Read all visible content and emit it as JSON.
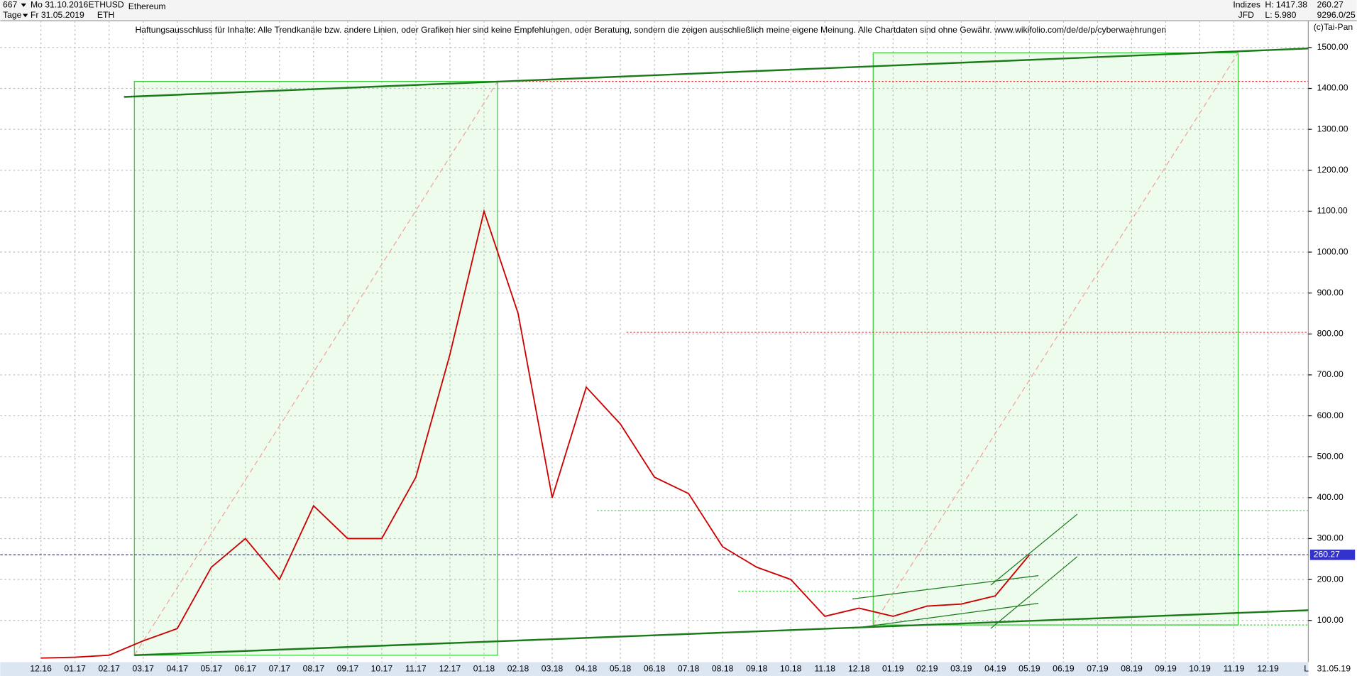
{
  "toolbar": {
    "count": "667",
    "start": "Mo 31.10.2016",
    "symbol": "ETHUSD",
    "period": "Tage",
    "end": "Fr 31.05.2019",
    "short": "ETH",
    "group": "Indizes",
    "high": "H: 1417.38",
    "last": "260.27",
    "broker": "JFD",
    "low": "L: 5.980",
    "volume": "9296.0/25",
    "copyright": "(c)Tai-Pan",
    "date_end": "31.05.19",
    "scale": "L"
  },
  "chart_data": {
    "type": "line",
    "title": "Ethereum",
    "subtitle": "Haftungsausschluss für Inhalte: Alle Trendkanäle bzw. andere Linien, oder Grafiken hier sind keine Empfehlungen, oder Beratung, sondern die zeigen ausschließlich meine eigene Meinung. Alle Chartdaten sind ohne Gewähr.  www.wikifolio.com/de/de/p/cyberwaehrungen",
    "categories": [
      "12.16",
      "01.17",
      "02.17",
      "03.17",
      "04.17",
      "05.17",
      "06.17",
      "07.17",
      "08.17",
      "09.17",
      "10.17",
      "11.17",
      "12.17",
      "01.18",
      "02.18",
      "03.18",
      "04.18",
      "05.18",
      "06.18",
      "07.18",
      "08.18",
      "09.18",
      "10.18",
      "11.18",
      "12.18",
      "01.19",
      "02.19",
      "03.19",
      "04.19",
      "05.19",
      "06.19",
      "07.19",
      "08.19",
      "09.19",
      "10.19",
      "11.19",
      "12.19"
    ],
    "values": [
      8,
      10,
      15,
      50,
      80,
      230,
      300,
      200,
      380,
      300,
      300,
      450,
      750,
      1100,
      850,
      400,
      670,
      580,
      450,
      410,
      280,
      230,
      200,
      110,
      130,
      110,
      135,
      140,
      160,
      260,
      null,
      null,
      null,
      null,
      null,
      null,
      null
    ],
    "color": "#cc0000",
    "ylim": [
      -2,
      1578
    ],
    "yticks": [
      {
        "value": 100,
        "label": "100.00"
      },
      {
        "value": 200,
        "label": "200.00"
      },
      {
        "value": 300,
        "label": "300.00"
      },
      {
        "value": 400,
        "label": "400.00"
      },
      {
        "value": 500,
        "label": "500.00"
      },
      {
        "value": 600,
        "label": "600.00"
      },
      {
        "value": 700,
        "label": "700.00"
      },
      {
        "value": 800,
        "label": "800.00"
      },
      {
        "value": 900,
        "label": "900.00"
      },
      {
        "value": 1000,
        "label": "1000.00"
      },
      {
        "value": 1100,
        "label": "1100.00"
      },
      {
        "value": 1200,
        "label": "1200.00"
      },
      {
        "value": 1300,
        "label": "1300.00"
      },
      {
        "value": 1400,
        "label": "1400.00"
      },
      {
        "value": 1500,
        "label": "1500.00"
      }
    ],
    "last_price": 260.27,
    "last_color": "#3333cc",
    "grid": true
  }
}
